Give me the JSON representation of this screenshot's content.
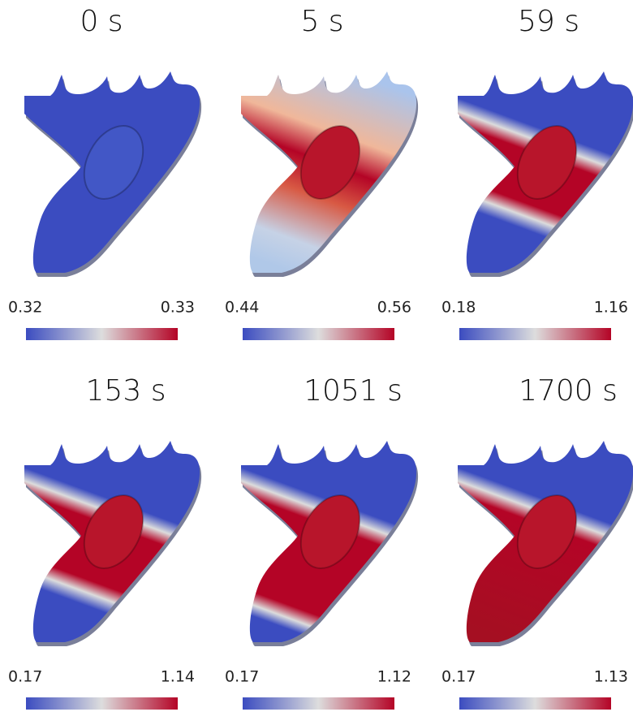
{
  "panels": [
    {
      "title": "0 s",
      "min": "0.32",
      "max": "0.33"
    },
    {
      "title": "5 s",
      "min": "0.44",
      "max": "0.56"
    },
    {
      "title": "59 s",
      "min": "0.18",
      "max": "1.16"
    },
    {
      "title": "153 s",
      "min": "0.17",
      "max": "1.14"
    },
    {
      "title": "1051 s",
      "min": "0.17",
      "max": "1.12"
    },
    {
      "title": "1700 s",
      "min": "0.17",
      "max": "1.13"
    }
  ]
}
